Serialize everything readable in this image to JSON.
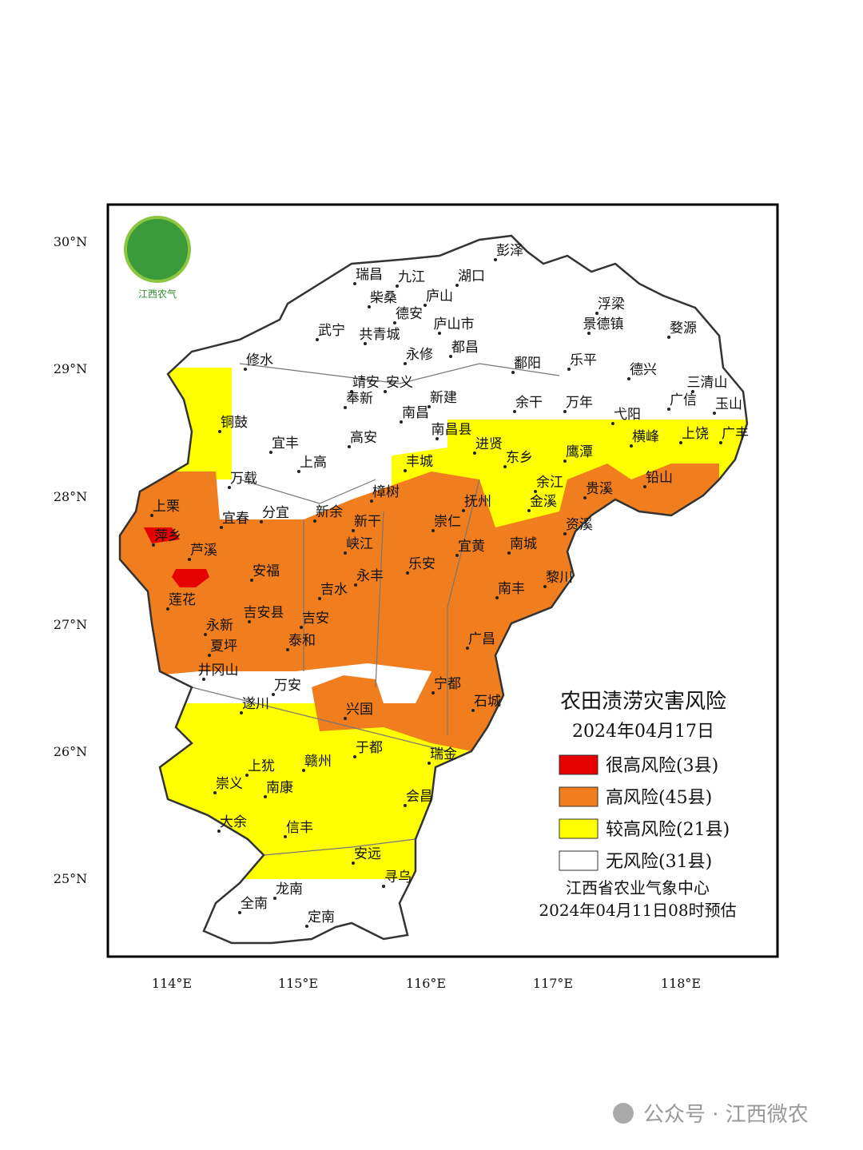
{
  "logo_text": "江西农气",
  "lat_labels": [
    "30°N",
    "29°N",
    "28°N",
    "27°N",
    "26°N",
    "25°N"
  ],
  "lon_labels": [
    "114°E",
    "115°E",
    "116°E",
    "117°E",
    "118°E"
  ],
  "cities": [
    "彭泽",
    "瑞昌",
    "九江",
    "湖口",
    "柴桑",
    "庐山",
    "德安",
    "武宁",
    "共青城",
    "庐山市",
    "修水",
    "永修",
    "都昌",
    "浮梁",
    "景德镇",
    "婺源",
    "鄱阳",
    "乐平",
    "德兴",
    "三清山",
    "靖安",
    "安义",
    "奉新",
    "新建",
    "余干",
    "万年",
    "广信",
    "玉山",
    "铜鼓",
    "南昌",
    "南昌县",
    "弋阳",
    "宜丰",
    "高安",
    "进贤",
    "鹰潭",
    "横峰",
    "上饶",
    "广丰",
    "上高",
    "丰城",
    "东乡",
    "万载",
    "余江",
    "贵溪",
    "铅山",
    "樟树",
    "抚州",
    "金溪",
    "上栗",
    "宜春",
    "分宜",
    "新余",
    "新干",
    "崇仁",
    "资溪",
    "萍乡",
    "峡江",
    "宜黄",
    "南城",
    "芦溪",
    "乐安",
    "永丰",
    "安福",
    "黎川",
    "南丰",
    "吉水",
    "莲花",
    "吉安县",
    "吉安",
    "永新",
    "泰和",
    "广昌",
    "夏坪",
    "井冈山",
    "宁都",
    "万安",
    "石城",
    "遂川",
    "兴国",
    "于都",
    "瑞金",
    "上犹",
    "赣州",
    "崇义",
    "南康",
    "会昌",
    "大余",
    "信丰",
    "安远",
    "寻乌",
    "龙南",
    "全南",
    "定南"
  ],
  "legend": {
    "title": "农田渍涝灾害风险",
    "date": "2024年04月17日",
    "items": [
      {
        "label": "很高风险(3县)",
        "color": "#e60000"
      },
      {
        "label": "高风险(45县)",
        "color": "#f07d1e"
      },
      {
        "label": "较高风险(21县)",
        "color": "#ffff00"
      },
      {
        "label": "无风险(31县)",
        "color": "#ffffff"
      }
    ],
    "agency": "江西省农业气象中心",
    "issued": "2024年04月11日08时预估"
  },
  "watermark": "公众号 · 江西微农"
}
